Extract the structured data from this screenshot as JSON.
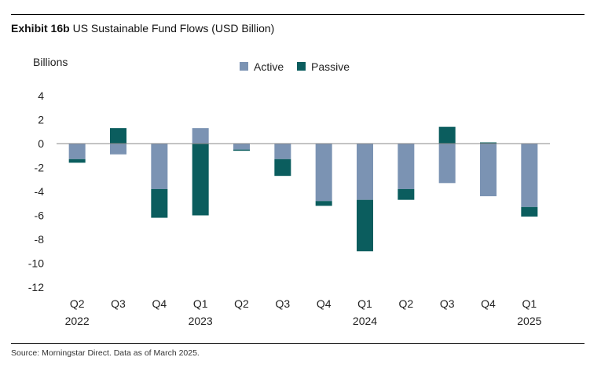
{
  "header": {
    "exhibit": "Exhibit 16b",
    "title": "US Sustainable Fund Flows (USD Billion)"
  },
  "footer": {
    "source": "Source: Morningstar Direct. Data as of March 2025."
  },
  "colors": {
    "active": "#7b93b3",
    "passive": "#0b5d5e"
  },
  "chart_data": {
    "type": "bar",
    "stacked": true,
    "ylabel": "Billions",
    "ylim": [
      -12,
      4
    ],
    "yticks": [
      4,
      2,
      0,
      -2,
      -4,
      -6,
      -8,
      -10,
      -12
    ],
    "grid": false,
    "legend_position": "top-center",
    "categories": [
      "Q2",
      "Q3",
      "Q4",
      "Q1",
      "Q2",
      "Q3",
      "Q4",
      "Q1",
      "Q2",
      "Q3",
      "Q4",
      "Q1"
    ],
    "year_labels": [
      "2022",
      "",
      "",
      "2023",
      "",
      "",
      "",
      "2024",
      "",
      "",
      "",
      "2025"
    ],
    "series": [
      {
        "name": "Active",
        "values": [
          -1.3,
          -0.9,
          -3.8,
          1.3,
          -0.5,
          -1.3,
          -4.8,
          -4.7,
          -3.8,
          -3.3,
          -4.4,
          -5.3
        ]
      },
      {
        "name": "Passive",
        "values": [
          -0.3,
          1.3,
          -2.4,
          -6.0,
          -0.1,
          -1.4,
          -0.4,
          -4.3,
          -0.9,
          1.4,
          0.1,
          -0.8
        ]
      }
    ]
  }
}
